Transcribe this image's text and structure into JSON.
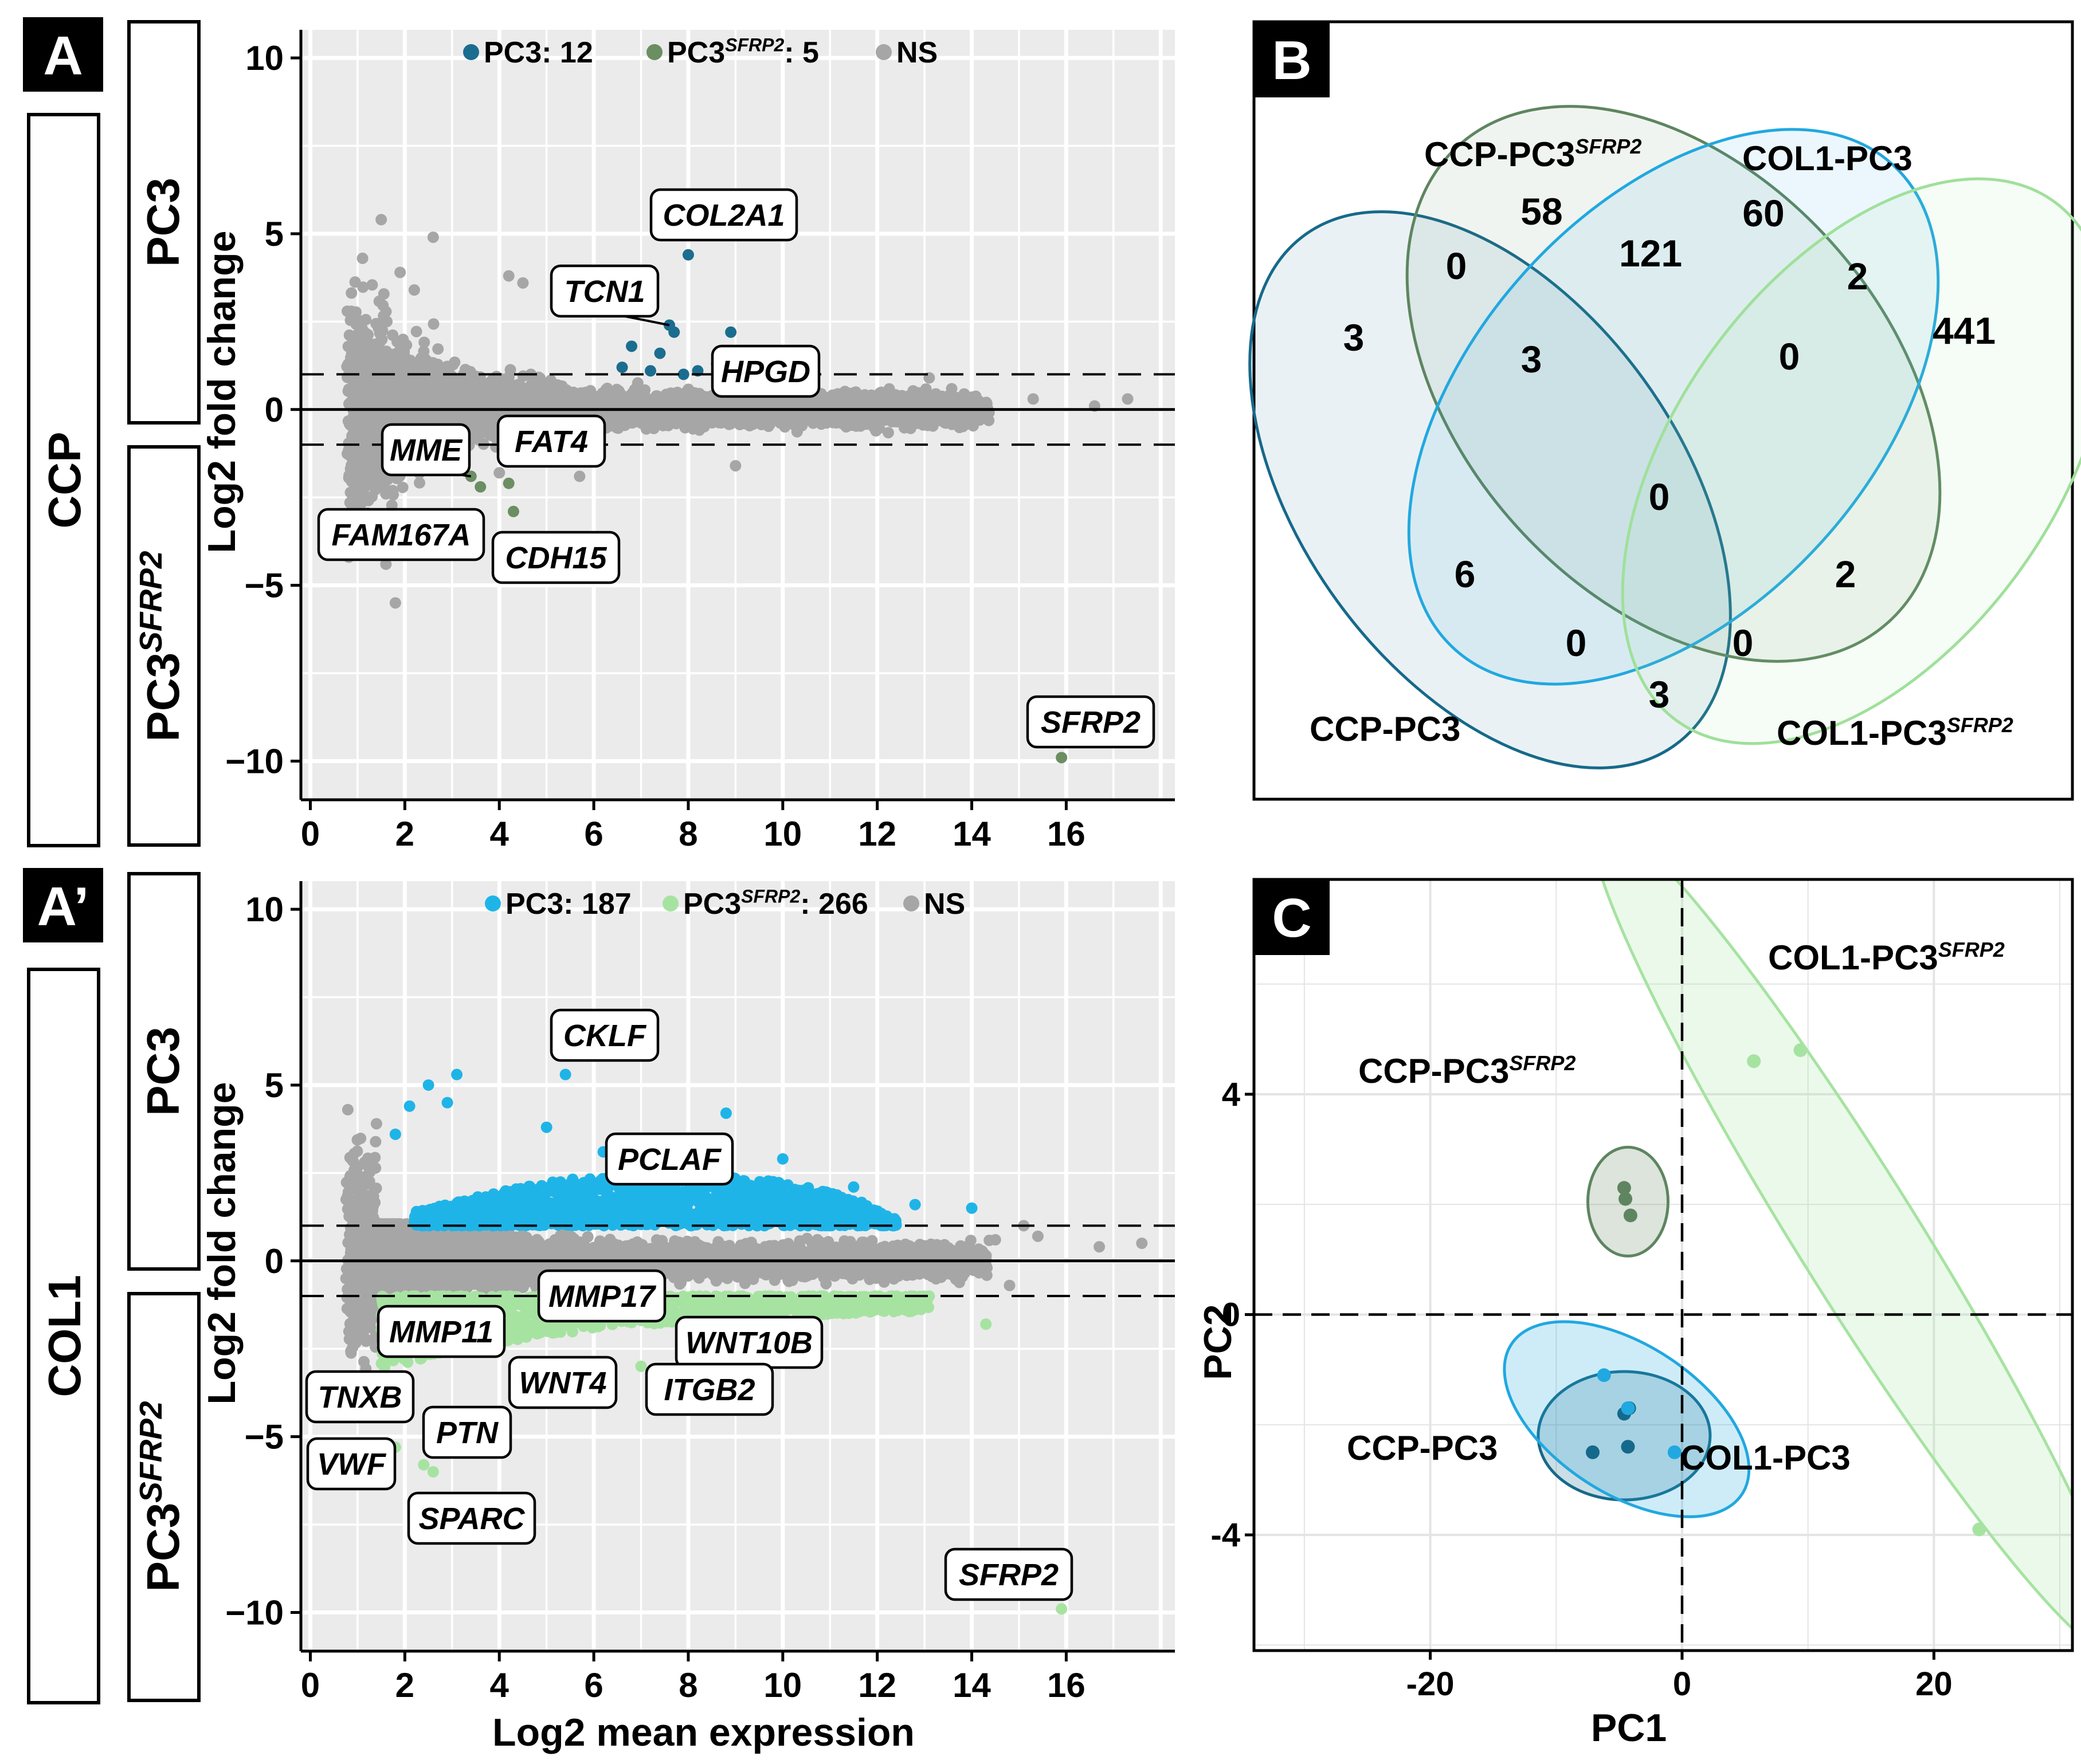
{
  "colors": {
    "pc3_ccp": "#1b6d8f",
    "sfrp2_ccp": "#6b8e62",
    "ns": "#a6a6a6",
    "pc3_col1": "#1fb4e8",
    "sfrp2_col1": "#a6e3a1",
    "venn_ccp_pc3": "#16698a",
    "venn_ccp_sfrp2": "#5e8560",
    "venn_col1_pc3": "#21a8e0",
    "venn_col1_sfrp2": "#9fe09a"
  },
  "panels": {
    "A": {
      "letter": "A",
      "side_label": "CCP",
      "top_label": "PC3",
      "bottom_label_main": "PC3",
      "bottom_label_sup": "SFRP2"
    },
    "A2": {
      "letter": "A’",
      "side_label": "COL1",
      "top_label": "PC3",
      "bottom_label_main": "PC3",
      "bottom_label_sup": "SFRP2"
    },
    "B": {
      "letter": "B"
    },
    "C": {
      "letter": "C"
    }
  },
  "chart_data": [
    {
      "id": "ma_ccp",
      "type": "scatter",
      "xlabel": "",
      "ylabel": "Log2 fold change",
      "xlim": [
        -0.2,
        18.3
      ],
      "ylim": [
        -11.1,
        10.8
      ],
      "xticks": [
        "0",
        "2",
        "4",
        "6",
        "8",
        "10",
        "12",
        "14",
        "16"
      ],
      "xtick_values": [
        0,
        2,
        4,
        6,
        8,
        10,
        12,
        14,
        16
      ],
      "yticks": [
        "10",
        "5",
        "0",
        "−5",
        "−10"
      ],
      "ytick_values": [
        10,
        5,
        0,
        -5,
        -10
      ],
      "thresholds": [
        1,
        -1
      ],
      "legend": [
        {
          "label": "PC3: 12",
          "color": "#1b6d8f"
        },
        {
          "label_main": "PC3",
          "label_sup": "SFRP2",
          "label_tail": ": 5",
          "color": "#6b8e62"
        },
        {
          "label": "NS",
          "color": "#a6a6a6"
        }
      ],
      "up_points": [
        [
          7.6,
          2.4
        ],
        [
          7.7,
          2.2
        ],
        [
          6.8,
          1.8
        ],
        [
          7.4,
          1.6
        ],
        [
          8.0,
          4.4
        ],
        [
          8.9,
          2.2
        ],
        [
          8.2,
          1.1
        ],
        [
          8.6,
          1.3
        ],
        [
          7.9,
          1.0
        ],
        [
          9.0,
          1.5
        ],
        [
          7.2,
          1.1
        ],
        [
          6.6,
          1.2
        ]
      ],
      "down_points": [
        [
          3.6,
          -2.2
        ],
        [
          4.2,
          -2.1
        ],
        [
          4.3,
          -2.9
        ],
        [
          3.4,
          -1.9
        ],
        [
          15.9,
          -9.9
        ]
      ],
      "ns_extra_points": [
        [
          1.5,
          5.4
        ],
        [
          2.6,
          4.9
        ],
        [
          4.2,
          3.8
        ],
        [
          4.5,
          3.6
        ],
        [
          1.9,
          3.9
        ],
        [
          2.2,
          3.4
        ],
        [
          13.1,
          0.9
        ],
        [
          15.3,
          0.3
        ],
        [
          16.6,
          0.1
        ],
        [
          17.3,
          0.3
        ],
        [
          1.6,
          -4.4
        ],
        [
          1.8,
          -5.5
        ],
        [
          1.4,
          -4.1
        ],
        [
          5.7,
          -1.9
        ],
        [
          9.0,
          -1.6
        ],
        [
          4.0,
          -1.8
        ]
      ],
      "annotations": [
        {
          "text": "COL2A1",
          "gene_x": 8.0,
          "gene_y": 4.4
        },
        {
          "text": "TCN1",
          "gene_x": 7.6,
          "gene_y": 2.4
        },
        {
          "text": "HPGD",
          "gene_x": 8.2,
          "gene_y": 1.1
        },
        {
          "text": "MME",
          "gene_x": 3.4,
          "gene_y": -1.9
        },
        {
          "text": "FAT4",
          "gene_x": 4.2,
          "gene_y": -1.6
        },
        {
          "text": "FAM167A",
          "gene_x": 3.6,
          "gene_y": -2.2
        },
        {
          "text": "CDH15",
          "gene_x": 4.3,
          "gene_y": -2.9
        },
        {
          "text": "SFRP2",
          "gene_x": 15.9,
          "gene_y": -9.9
        }
      ]
    },
    {
      "id": "ma_col1",
      "type": "scatter",
      "xlabel": "Log2 mean expression",
      "ylabel": "Log2 fold change",
      "xlim": [
        -0.2,
        18.3
      ],
      "ylim": [
        -11.1,
        10.8
      ],
      "xticks": [
        "0",
        "2",
        "4",
        "6",
        "8",
        "10",
        "12",
        "14",
        "16"
      ],
      "xtick_values": [
        0,
        2,
        4,
        6,
        8,
        10,
        12,
        14,
        16
      ],
      "yticks": [
        "10",
        "5",
        "0",
        "−5",
        "−10"
      ],
      "ytick_values": [
        10,
        5,
        0,
        -5,
        -10
      ],
      "thresholds": [
        1,
        -1
      ],
      "legend": [
        {
          "label": "PC3: 187",
          "color": "#1fb4e8"
        },
        {
          "label_main": "PC3",
          "label_sup": "SFRP2",
          "label_tail": ": 266",
          "color": "#a6e3a1"
        },
        {
          "label": "NS",
          "color": "#a6a6a6"
        }
      ],
      "up_points": [
        [
          5.4,
          5.3
        ],
        [
          3.1,
          5.3
        ],
        [
          2.5,
          5.0
        ],
        [
          2.1,
          4.4
        ],
        [
          8.8,
          4.2
        ],
        [
          5.0,
          3.8
        ],
        [
          1.8,
          3.6
        ],
        [
          2.9,
          4.5
        ],
        [
          12.8,
          1.6
        ],
        [
          14.0,
          1.5
        ],
        [
          6.2,
          3.1
        ],
        [
          10.0,
          2.9
        ],
        [
          11.5,
          2.1
        ]
      ],
      "down_points": [
        [
          1.9,
          -3.7
        ],
        [
          1.5,
          -4.2
        ],
        [
          1.8,
          -5.3
        ],
        [
          2.4,
          -5.8
        ],
        [
          2.6,
          -6.0
        ],
        [
          4.6,
          -3.2
        ],
        [
          7.0,
          -3.0
        ],
        [
          8.2,
          -2.8
        ],
        [
          14.3,
          -1.8
        ],
        [
          15.9,
          -9.9
        ],
        [
          3.2,
          -4.5
        ]
      ],
      "ns_extra_points": [
        [
          1.4,
          3.9
        ],
        [
          15.1,
          1.0
        ],
        [
          15.4,
          0.7
        ],
        [
          16.7,
          0.4
        ],
        [
          17.6,
          0.5
        ],
        [
          14.5,
          0.6
        ],
        [
          13.9,
          0.3
        ],
        [
          14.8,
          -0.7
        ]
      ],
      "up_band": [
        [
          2.0,
          1.4
        ],
        [
          2.6,
          1.6
        ],
        [
          3.5,
          1.6
        ],
        [
          4.5,
          1.8
        ],
        [
          5.5,
          2.1
        ],
        [
          6.5,
          2.4
        ],
        [
          7.5,
          2.5
        ],
        [
          8.5,
          2.4
        ],
        [
          9.5,
          2.3
        ],
        [
          10.5,
          2.1
        ],
        [
          11.5,
          1.7
        ],
        [
          12.0,
          1.4
        ],
        [
          12.5,
          1.15
        ],
        [
          12.5,
          1.0
        ],
        [
          2.0,
          1.0
        ]
      ],
      "down_band": [
        [
          1.5,
          -1.0
        ],
        [
          13.0,
          -1.0
        ],
        [
          13.0,
          -1.2
        ],
        [
          12.0,
          -1.3
        ],
        [
          10.5,
          -1.5
        ],
        [
          9.0,
          -1.8
        ],
        [
          7.5,
          -2.2
        ],
        [
          6.0,
          -2.6
        ],
        [
          4.5,
          -2.8
        ],
        [
          3.0,
          -3.1
        ],
        [
          2.0,
          -3.3
        ],
        [
          1.5,
          -3.0
        ]
      ],
      "annotations": [
        {
          "text": "CKLF",
          "gene_x": 5.4,
          "gene_y": 5.3
        },
        {
          "text": "PCLAF",
          "gene_x": 8.8,
          "gene_y": 4.2
        },
        {
          "text": "MMP17",
          "gene_x": 7.0,
          "gene_y": -0.9
        },
        {
          "text": "MMP11",
          "gene_x": 4.6,
          "gene_y": -1.9
        },
        {
          "text": "WNT10B",
          "gene_x": 8.2,
          "gene_y": -2.8
        },
        {
          "text": "WNT4",
          "gene_x": 4.6,
          "gene_y": -3.2
        },
        {
          "text": "ITGB2",
          "gene_x": 7.0,
          "gene_y": -3.0
        },
        {
          "text": "TNXB",
          "gene_x": 1.9,
          "gene_y": -3.7
        },
        {
          "text": "PTN",
          "gene_x": 3.2,
          "gene_y": -4.5
        },
        {
          "text": "VWF",
          "gene_x": 1.8,
          "gene_y": -5.3
        },
        {
          "text": "SPARC",
          "gene_x": 2.5,
          "gene_y": -5.9
        },
        {
          "text": "SFRP2",
          "gene_x": 15.9,
          "gene_y": -9.9
        }
      ]
    },
    {
      "id": "venn",
      "type": "venn",
      "sets": [
        {
          "name": "CCP-PC3"
        },
        {
          "name_main": "CCP-PC3",
          "name_sup": "SFRP2"
        },
        {
          "name": "COL1-PC3"
        },
        {
          "name_main": "COL1-PC3",
          "name_sup": "SFRP2"
        }
      ],
      "regions": [
        {
          "sets": "CCP-PC3 only",
          "value": "3"
        },
        {
          "sets": "CCP-PC3SFRP2 only",
          "value": "58"
        },
        {
          "sets": "COL1-PC3 only",
          "value": "60"
        },
        {
          "sets": "COL1-PC3SFRP2 only",
          "value": "441"
        },
        {
          "sets": "CCP-PC3 ∩ CCP-PC3SFRP2",
          "value": "0"
        },
        {
          "sets": "CCP-PC3SFRP2 ∩ COL1-PC3",
          "value": "121"
        },
        {
          "sets": "COL1-PC3 ∩ COL1-PC3SFRP2",
          "value": "2"
        },
        {
          "sets": "CCP-PC3 ∩ CCP-PC3SFRP2 ∩ COL1-PC3",
          "value": "3"
        },
        {
          "sets": "CCP-PC3SFRP2 ∩ COL1-PC3 ∩ COL1-PC3SFRP2",
          "value": "0"
        },
        {
          "sets": "all four",
          "value": "0"
        },
        {
          "sets": "CCP-PC3 ∩ COL1-PC3",
          "value": "6"
        },
        {
          "sets": "CCP-PC3SFRP2 ∩ COL1-PC3SFRP2",
          "value": "2"
        },
        {
          "sets": "CCP-PC3 ∩ COL1-PC3 ∩ COL1-PC3SFRP2",
          "value": "0"
        },
        {
          "sets": "CCP-PC3 ∩ CCP-PC3SFRP2 ∩ COL1-PC3SFRP2",
          "value": "0"
        },
        {
          "sets": "CCP-PC3 ∩ COL1-PC3SFRP2",
          "value": "3"
        }
      ]
    },
    {
      "id": "pca",
      "type": "scatter",
      "xlabel": "PC1",
      "ylabel": "PC2",
      "xlim": [
        -34,
        31
      ],
      "ylim": [
        -6.1,
        7.9
      ],
      "xticks": [
        "-20",
        "0",
        "20"
      ],
      "xtick_values": [
        -20,
        0,
        20
      ],
      "yticks": [
        "4",
        "0",
        "-4"
      ],
      "ytick_values": [
        4,
        0,
        -4
      ],
      "groups": [
        {
          "name": "CCP-PC3",
          "color": "#16698a",
          "points": [
            [
              -4.6,
              -1.8
            ],
            [
              -4.2,
              -1.7
            ],
            [
              -7.1,
              -2.5
            ],
            [
              -4.3,
              -2.4
            ]
          ]
        },
        {
          "name_main": "CCP-PC3",
          "name_sup": "SFRP2",
          "color": "#5e8560",
          "points": [
            [
              -4.6,
              2.3
            ],
            [
              -4.5,
              2.1
            ],
            [
              -4.1,
              1.8
            ]
          ]
        },
        {
          "name": "COL1-PC3",
          "color": "#21a8e0",
          "points": [
            [
              -6.2,
              -1.1
            ],
            [
              -4.3,
              -1.7
            ],
            [
              -0.6,
              -2.5
            ]
          ]
        },
        {
          "name_main": "COL1-PC3",
          "name_sup": "SFRP2",
          "color": "#a6e3a1",
          "points": [
            [
              5.7,
              4.6
            ],
            [
              9.4,
              4.8
            ],
            [
              23.6,
              -3.9
            ]
          ]
        }
      ]
    }
  ]
}
